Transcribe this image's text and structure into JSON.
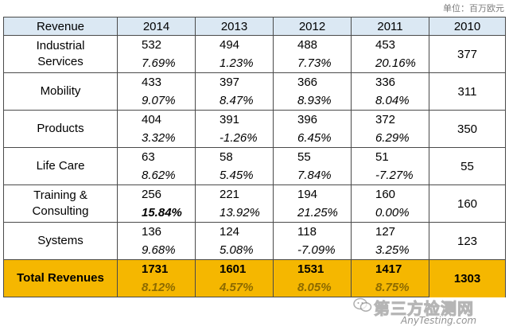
{
  "unit_note": "单位：百万欧元",
  "header": {
    "label": "Revenue",
    "years": [
      "2014",
      "2013",
      "2012",
      "2011",
      "2010"
    ]
  },
  "rows": [
    {
      "name": "Industrial\nServices",
      "values": [
        "532",
        "494",
        "488",
        "453",
        "377"
      ],
      "growth": [
        "7.69%",
        "1.23%",
        "7.73%",
        "20.16%"
      ]
    },
    {
      "name": "Mobility",
      "values": [
        "433",
        "397",
        "366",
        "336",
        "311"
      ],
      "growth": [
        "9.07%",
        "8.47%",
        "8.93%",
        "8.04%"
      ]
    },
    {
      "name": "Products",
      "values": [
        "404",
        "391",
        "396",
        "372",
        "350"
      ],
      "growth": [
        "3.32%",
        "-1.26%",
        "6.45%",
        "6.29%"
      ]
    },
    {
      "name": "Life Care",
      "values": [
        "63",
        "58",
        "55",
        "51",
        "55"
      ],
      "growth": [
        "8.62%",
        "5.45%",
        "7.84%",
        "-7.27%"
      ]
    },
    {
      "name": "Training &\nConsulting",
      "values": [
        "256",
        "221",
        "194",
        "160",
        "160"
      ],
      "growth": [
        "15.84%",
        "13.92%",
        "21.25%",
        "0.00%"
      ]
    },
    {
      "name": "Systems",
      "values": [
        "136",
        "124",
        "118",
        "127",
        "123"
      ],
      "growth": [
        "9.68%",
        "5.08%",
        "-7.09%",
        "3.25%"
      ]
    }
  ],
  "total": {
    "name": "Total Revenues",
    "values": [
      "1731",
      "1601",
      "1531",
      "1417",
      "1303"
    ],
    "growth": [
      "8.12%",
      "4.57%",
      "8.05%",
      "8.75%"
    ]
  },
  "watermark": {
    "line1": "第三方检测网",
    "line2": "AnyTesting.com",
    "icon": "wechat-icon"
  }
}
